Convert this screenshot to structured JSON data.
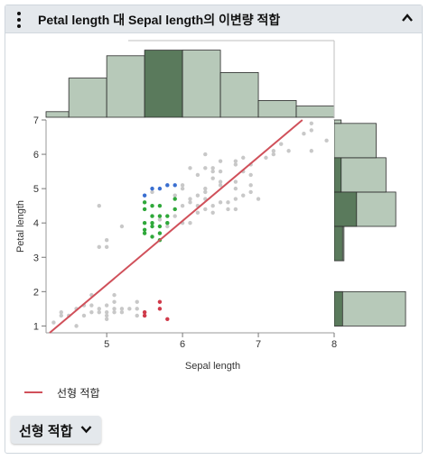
{
  "header": {
    "title": "Petal length 대 Sepal length의 이변량 적합",
    "menu_icon": "kebab-menu-icon",
    "collapse_icon": "chevron-up-icon"
  },
  "legend": {
    "label": "선형 적합",
    "color": "#d0505a"
  },
  "fit_button": {
    "label": "선형 적합",
    "icon": "chevron-down-icon"
  },
  "colors": {
    "hist_fill": "#b7c9b9",
    "hist_highlight": "#5a7a5c",
    "points_default": "#c8c8c8",
    "points_blue": "#3a6fd1",
    "points_green": "#2fa83a",
    "points_red": "#d03a4a",
    "fit_line": "#d0505a"
  },
  "chart_data": {
    "type": "scatter",
    "xlabel": "Sepal length",
    "ylabel": "Petal length",
    "xlim": [
      4.2,
      8.0
    ],
    "ylim": [
      0.8,
      7.0
    ],
    "xticks": [
      5,
      6,
      7,
      8
    ],
    "yticks": [
      1,
      2,
      3,
      4,
      5,
      6,
      7
    ],
    "fit_line": {
      "slope": 1.86,
      "intercept": -7.1
    },
    "x_histogram": {
      "bins": [
        [
          4.0,
          4.5,
          1
        ],
        [
          4.5,
          5.0,
          7
        ],
        [
          5.0,
          5.5,
          11
        ],
        [
          5.5,
          6.0,
          12
        ],
        [
          6.0,
          6.5,
          12
        ],
        [
          6.5,
          7.0,
          8
        ],
        [
          7.0,
          7.5,
          3
        ],
        [
          7.5,
          8.0,
          2
        ]
      ],
      "highlight_bins": [
        3
      ]
    },
    "y_histogram": {
      "bins": [
        [
          1.0,
          2.0,
          50
        ],
        [
          3.0,
          4.0,
          11
        ],
        [
          4.0,
          5.0,
          33
        ],
        [
          5.0,
          6.0,
          34
        ],
        [
          6.0,
          7.0,
          6
        ],
        [
          6.0,
          7.0,
          22
        ]
      ],
      "highlight": [
        [
          4.0,
          5.0,
          8
        ],
        [
          5.0,
          6.0,
          3
        ],
        [
          3.0,
          4.0,
          2
        ]
      ]
    },
    "series": [
      {
        "name": "",
        "color": "#c8c8c8",
        "points": [
          [
            4.3,
            1.1
          ],
          [
            4.4,
            1.3
          ],
          [
            4.4,
            1.4
          ],
          [
            4.5,
            1.3
          ],
          [
            4.6,
            1.0
          ],
          [
            4.6,
            1.5
          ],
          [
            4.7,
            1.3
          ],
          [
            4.7,
            1.6
          ],
          [
            4.8,
            1.4
          ],
          [
            4.8,
            1.6
          ],
          [
            4.8,
            1.9
          ],
          [
            4.9,
            1.4
          ],
          [
            4.9,
            1.5
          ],
          [
            5.0,
            1.2
          ],
          [
            5.0,
            1.4
          ],
          [
            5.0,
            1.6
          ],
          [
            5.0,
            1.3
          ],
          [
            5.1,
            1.4
          ],
          [
            5.1,
            1.5
          ],
          [
            5.1,
            1.7
          ],
          [
            5.1,
            1.9
          ],
          [
            5.2,
            1.4
          ],
          [
            5.2,
            1.5
          ],
          [
            5.3,
            1.5
          ],
          [
            5.4,
            1.3
          ],
          [
            5.4,
            1.5
          ],
          [
            5.4,
            1.7
          ],
          [
            5.5,
            1.3
          ],
          [
            5.5,
            1.4
          ],
          [
            4.9,
            3.3
          ],
          [
            4.9,
            4.5
          ],
          [
            5.0,
            3.3
          ],
          [
            5.0,
            3.5
          ],
          [
            5.2,
            3.9
          ],
          [
            5.6,
            4.9
          ],
          [
            5.7,
            4.1
          ],
          [
            5.8,
            3.9
          ],
          [
            5.8,
            4.0
          ],
          [
            5.8,
            5.1
          ],
          [
            5.9,
            4.2
          ],
          [
            5.9,
            4.8
          ],
          [
            6.0,
            4.0
          ],
          [
            6.0,
            4.5
          ],
          [
            6.0,
            5.0
          ],
          [
            6.0,
            5.1
          ],
          [
            6.1,
            4.0
          ],
          [
            6.1,
            4.6
          ],
          [
            6.1,
            4.7
          ],
          [
            6.2,
            4.3
          ],
          [
            6.2,
            4.5
          ],
          [
            6.2,
            5.4
          ],
          [
            6.3,
            4.4
          ],
          [
            6.3,
            4.7
          ],
          [
            6.3,
            4.9
          ],
          [
            6.3,
            5.0
          ],
          [
            6.3,
            5.6
          ],
          [
            6.3,
            6.0
          ],
          [
            6.4,
            4.3
          ],
          [
            6.4,
            4.5
          ],
          [
            6.4,
            5.3
          ],
          [
            6.4,
            5.6
          ],
          [
            6.5,
            4.6
          ],
          [
            6.5,
            5.1
          ],
          [
            6.5,
            5.5
          ],
          [
            6.5,
            5.8
          ],
          [
            6.6,
            4.4
          ],
          [
            6.6,
            4.6
          ],
          [
            6.7,
            4.4
          ],
          [
            6.7,
            4.7
          ],
          [
            6.7,
            5.0
          ],
          [
            6.7,
            5.7
          ],
          [
            6.7,
            5.8
          ],
          [
            6.8,
            4.8
          ],
          [
            6.8,
            5.5
          ],
          [
            6.8,
            5.9
          ],
          [
            6.9,
            4.9
          ],
          [
            6.9,
            5.1
          ],
          [
            6.9,
            5.7
          ],
          [
            7.0,
            4.7
          ],
          [
            7.1,
            5.9
          ],
          [
            7.2,
            6.0
          ],
          [
            7.2,
            6.1
          ],
          [
            7.3,
            6.3
          ],
          [
            7.4,
            6.1
          ],
          [
            7.6,
            6.6
          ],
          [
            7.7,
            6.7
          ],
          [
            7.7,
            6.9
          ],
          [
            7.9,
            6.4
          ],
          [
            6.1,
            5.6
          ],
          [
            6.2,
            4.8
          ],
          [
            6.4,
            5.5
          ],
          [
            6.5,
            5.2
          ],
          [
            6.7,
            5.2
          ],
          [
            6.9,
            5.4
          ],
          [
            7.7,
            6.1
          ]
        ]
      },
      {
        "name": "",
        "color": "#3a6fd1",
        "points": [
          [
            5.6,
            5.0
          ],
          [
            5.7,
            5.0
          ],
          [
            5.8,
            5.1
          ],
          [
            5.9,
            5.1
          ],
          [
            5.5,
            4.8
          ]
        ]
      },
      {
        "name": "",
        "color": "#2fa83a",
        "points": [
          [
            5.5,
            3.7
          ],
          [
            5.5,
            3.8
          ],
          [
            5.5,
            4.0
          ],
          [
            5.5,
            4.4
          ],
          [
            5.5,
            4.6
          ],
          [
            5.6,
            3.6
          ],
          [
            5.6,
            4.0
          ],
          [
            5.6,
            4.2
          ],
          [
            5.6,
            4.5
          ],
          [
            5.7,
            3.5
          ],
          [
            5.7,
            3.9
          ],
          [
            5.7,
            4.2
          ],
          [
            5.7,
            4.5
          ],
          [
            5.8,
            4.0
          ],
          [
            5.8,
            4.2
          ],
          [
            5.9,
            4.7
          ],
          [
            5.9,
            4.4
          ],
          [
            5.7,
            3.7
          ],
          [
            5.6,
            3.9
          ]
        ]
      },
      {
        "name": "",
        "color": "#d03a4a",
        "points": [
          [
            5.5,
            1.3
          ],
          [
            5.5,
            1.4
          ],
          [
            5.7,
            1.5
          ],
          [
            5.7,
            1.7
          ],
          [
            5.8,
            1.2
          ]
        ]
      }
    ]
  }
}
